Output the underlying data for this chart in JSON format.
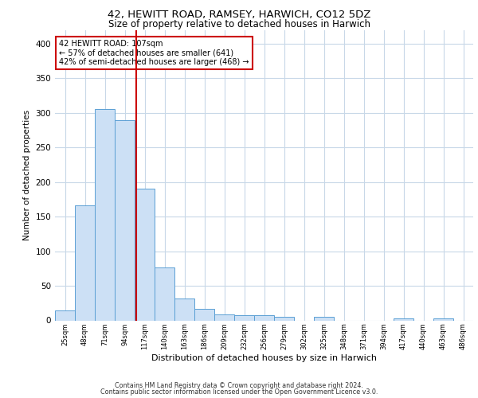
{
  "title1": "42, HEWITT ROAD, RAMSEY, HARWICH, CO12 5DZ",
  "title2": "Size of property relative to detached houses in Harwich",
  "xlabel": "Distribution of detached houses by size in Harwich",
  "ylabel": "Number of detached properties",
  "footnote1": "Contains HM Land Registry data © Crown copyright and database right 2024.",
  "footnote2": "Contains public sector information licensed under the Open Government Licence v3.0.",
  "annotation_title": "42 HEWITT ROAD: 107sqm",
  "annotation_line1": "← 57% of detached houses are smaller (641)",
  "annotation_line2": "42% of semi-detached houses are larger (468) →",
  "property_size": 107,
  "bar_color": "#cce0f5",
  "bar_edge_color": "#5a9fd4",
  "vline_color": "#cc0000",
  "annotation_box_edge": "#cc0000",
  "grid_color": "#c8d8e8",
  "background_color": "#ffffff",
  "categories": [
    "25sqm",
    "48sqm",
    "71sqm",
    "94sqm",
    "117sqm",
    "140sqm",
    "163sqm",
    "186sqm",
    "209sqm",
    "232sqm",
    "256sqm",
    "279sqm",
    "302sqm",
    "325sqm",
    "348sqm",
    "371sqm",
    "394sqm",
    "417sqm",
    "440sqm",
    "463sqm",
    "486sqm"
  ],
  "bin_edges": [
    13.5,
    36.5,
    59.5,
    82.5,
    105.5,
    128.5,
    151.5,
    174.5,
    197.5,
    220.5,
    243.5,
    266.5,
    289.5,
    312.5,
    335.5,
    358.5,
    381.5,
    404.5,
    427.5,
    450.5,
    473.5,
    496.5
  ],
  "values": [
    14,
    166,
    305,
    289,
    191,
    77,
    32,
    17,
    9,
    7,
    8,
    5,
    0,
    5,
    0,
    0,
    0,
    3,
    0,
    3,
    0
  ],
  "ylim": [
    0,
    420
  ],
  "yticks": [
    0,
    50,
    100,
    150,
    200,
    250,
    300,
    350,
    400
  ]
}
